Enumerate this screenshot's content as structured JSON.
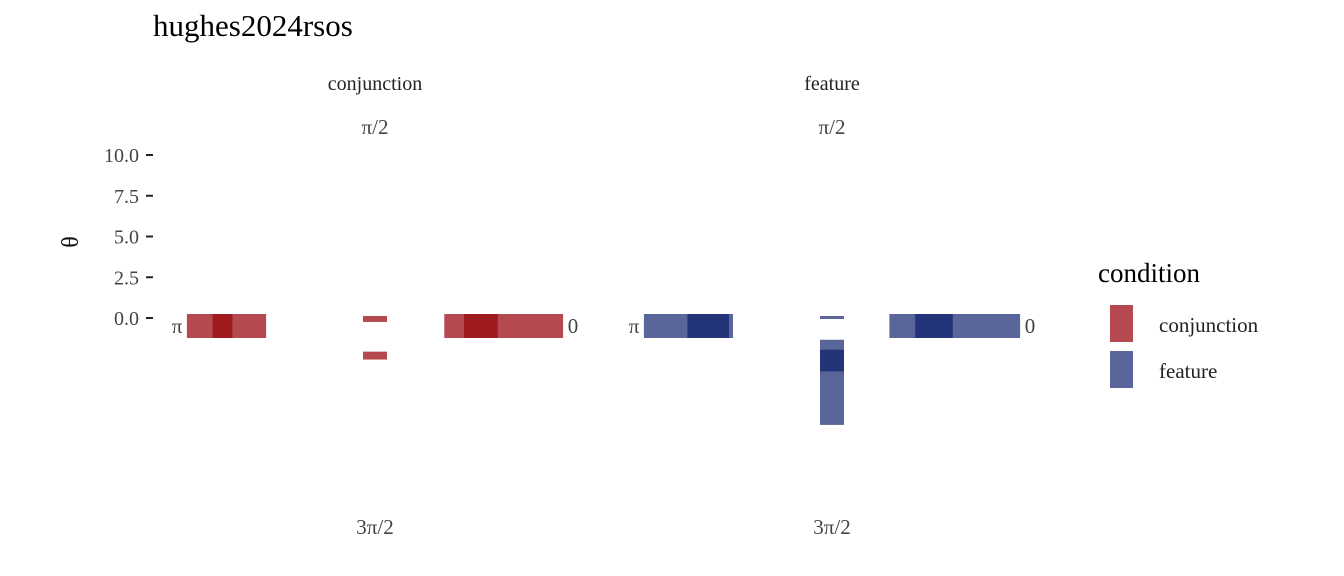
{
  "chart_data": {
    "type": "bar",
    "coord": "polar",
    "title": "hughes2024rsos",
    "ylabel": "θ",
    "y_ticks": [
      "10.0",
      "7.5",
      "5.0",
      "2.5",
      "0.0"
    ],
    "y_tick_values": [
      10.0,
      7.5,
      5.0,
      2.5,
      0.0
    ],
    "angle_labels": {
      "top": "π/2",
      "left": "π",
      "right": "0",
      "bottom": "3π/2"
    },
    "legend": {
      "title": "condition",
      "position": "right",
      "items": [
        {
          "label": "conjunction",
          "color": "#b44a4f"
        },
        {
          "label": "feature",
          "color": "#5a6599"
        }
      ]
    },
    "grid": false,
    "panels": [
      {
        "strip": "conjunction",
        "color": "#b44a4f",
        "dark": "#9e1a1d",
        "bars": [
          {
            "direction": "left",
            "segments": [
              {
                "from": 0.55,
                "to": 0.95
              }
            ],
            "overlap": [
              {
                "from": 0.72,
                "to": 0.82
              }
            ]
          },
          {
            "direction": "down",
            "segments": [
              {
                "from": 0.0,
                "to": 0.03
              },
              {
                "from": 0.18,
                "to": 0.22
              }
            ]
          },
          {
            "direction": "right",
            "segments": [
              {
                "from": 0.35,
                "to": 0.95
              }
            ],
            "overlap": [
              {
                "from": 0.45,
                "to": 0.62
              }
            ]
          }
        ]
      },
      {
        "strip": "feature",
        "color": "#5a6599",
        "dark": "#24347a",
        "bars": [
          {
            "direction": "left",
            "segments": [
              {
                "from": 0.5,
                "to": 0.95
              }
            ],
            "overlap": [
              {
                "from": 0.52,
                "to": 0.73
              }
            ]
          },
          {
            "direction": "down",
            "segments": [
              {
                "from": 0.0,
                "to": 0.015
              },
              {
                "from": 0.12,
                "to": 0.55
              }
            ],
            "overlap": [
              {
                "from": 0.17,
                "to": 0.28
              }
            ]
          },
          {
            "direction": "right",
            "segments": [
              {
                "from": 0.29,
                "to": 0.95
              }
            ],
            "overlap": [
              {
                "from": 0.42,
                "to": 0.61
              }
            ]
          }
        ]
      }
    ]
  }
}
